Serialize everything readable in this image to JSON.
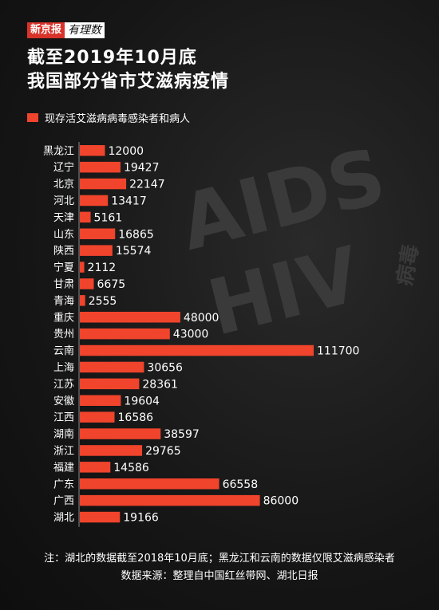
{
  "brand": {
    "name": "新京报",
    "column": "有理数"
  },
  "title": {
    "line1": "截至2019年10月底",
    "line2": "我国部分省市艾滋病疫情"
  },
  "watermark": {
    "line1": "AIDS",
    "line2": "HIV",
    "side": "病毒"
  },
  "notes": {
    "note": "注：湖北的数据截至2018年10月底；黑龙江和云南的数据仅限艾滋病感染者",
    "source": "数据来源：整理自中国红丝带网、湖北日报"
  },
  "colors": {
    "bar": "#f0442c",
    "background": "#141414",
    "text": "#ffffff"
  },
  "chart_data": {
    "type": "bar",
    "orientation": "horizontal",
    "categories": [
      "黑龙江",
      "辽宁",
      "北京",
      "河北",
      "天津",
      "山东",
      "陕西",
      "宁夏",
      "甘肃",
      "青海",
      "重庆",
      "贵州",
      "云南",
      "上海",
      "江苏",
      "安徽",
      "江西",
      "湖南",
      "浙江",
      "福建",
      "广东",
      "广西",
      "湖北"
    ],
    "series": [
      {
        "name": "现存活艾滋病病毒感染者和病人",
        "values": [
          12000,
          19427,
          22147,
          13417,
          5161,
          16865,
          15574,
          2112,
          6675,
          2555,
          48000,
          43000,
          111700,
          30656,
          28361,
          19604,
          16586,
          38597,
          29765,
          14586,
          66558,
          86000,
          19166
        ]
      }
    ],
    "xlim": [
      0,
      111700
    ],
    "grid": false,
    "legend": "top-left"
  }
}
